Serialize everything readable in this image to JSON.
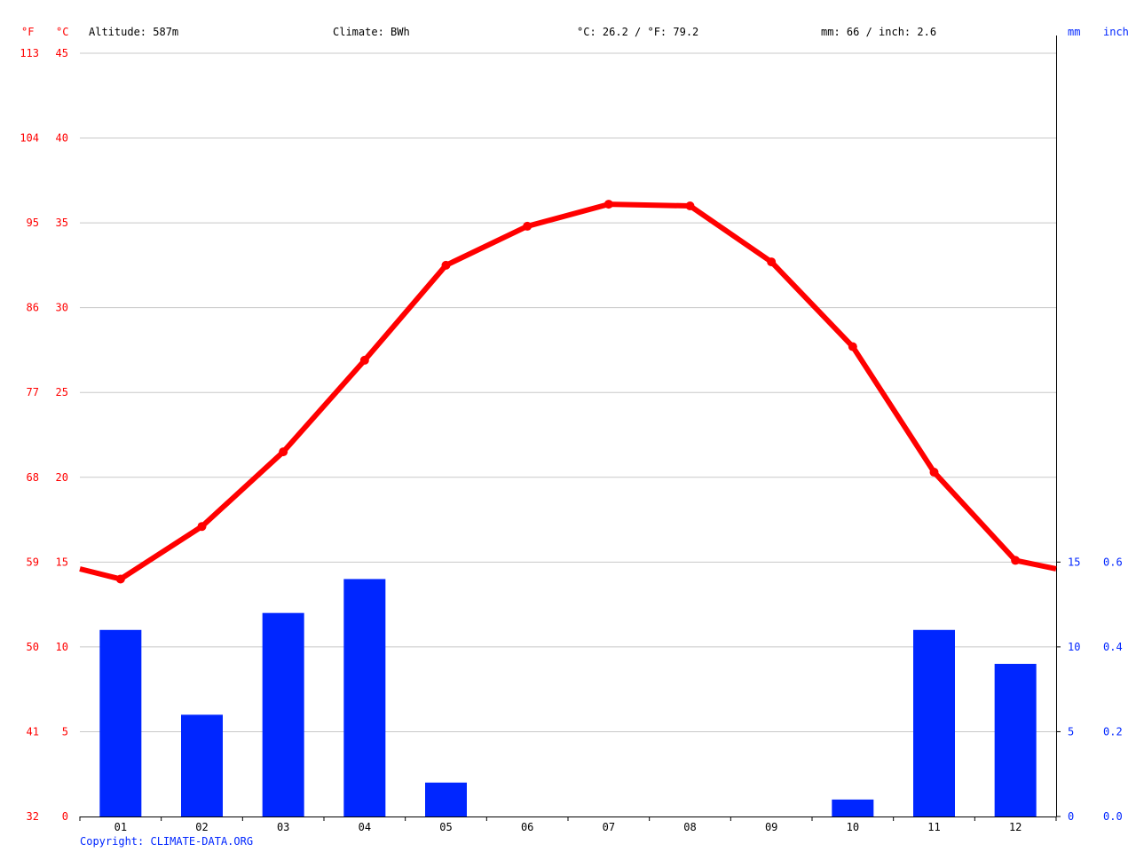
{
  "header": {
    "altitude": "Altitude: 587m",
    "climate": "Climate: BWh",
    "temperature_avg": "°C: 26.2 / °F: 79.2",
    "precipitation_total": "mm: 66 / inch: 2.6"
  },
  "copyright": "Copyright: CLIMATE-DATA.ORG",
  "colors": {
    "temperature": "#ff0000",
    "precipitation": "#0026ff",
    "grid": "#c8c8c8",
    "axis": "#000000",
    "text": "#000000"
  },
  "chart_data": {
    "type": "bar+line",
    "categories": [
      "01",
      "02",
      "03",
      "04",
      "05",
      "06",
      "07",
      "08",
      "09",
      "10",
      "11",
      "12"
    ],
    "axes": {
      "temp_c": {
        "unit_label": "°C",
        "ticks": [
          0,
          5,
          10,
          15,
          20,
          25,
          30,
          35,
          40,
          45
        ],
        "ylim": [
          0,
          45
        ]
      },
      "temp_f": {
        "unit_label": "°F",
        "ticks": [
          32,
          41,
          50,
          59,
          68,
          77,
          86,
          95,
          104,
          113
        ]
      },
      "precip_mm": {
        "unit_label": "mm",
        "ticks": [
          0,
          5,
          10,
          15
        ],
        "ylim": [
          0,
          45
        ]
      },
      "precip_inch": {
        "unit_label": "inch",
        "ticks": [
          "0.0",
          "0.2",
          "0.4",
          "0.6"
        ]
      }
    },
    "series": [
      {
        "type": "line",
        "axis": "temp_c",
        "values": [
          14.0,
          17.1,
          21.5,
          26.9,
          32.5,
          34.8,
          36.1,
          36.0,
          32.7,
          27.7,
          20.3,
          15.1
        ],
        "edge_left": 14.6,
        "edge_right": 14.6
      },
      {
        "type": "bar",
        "axis": "precip_mm",
        "values": [
          11,
          6,
          12,
          14,
          2,
          0,
          0,
          0,
          0,
          1,
          11,
          9
        ]
      }
    ],
    "grid": true
  }
}
